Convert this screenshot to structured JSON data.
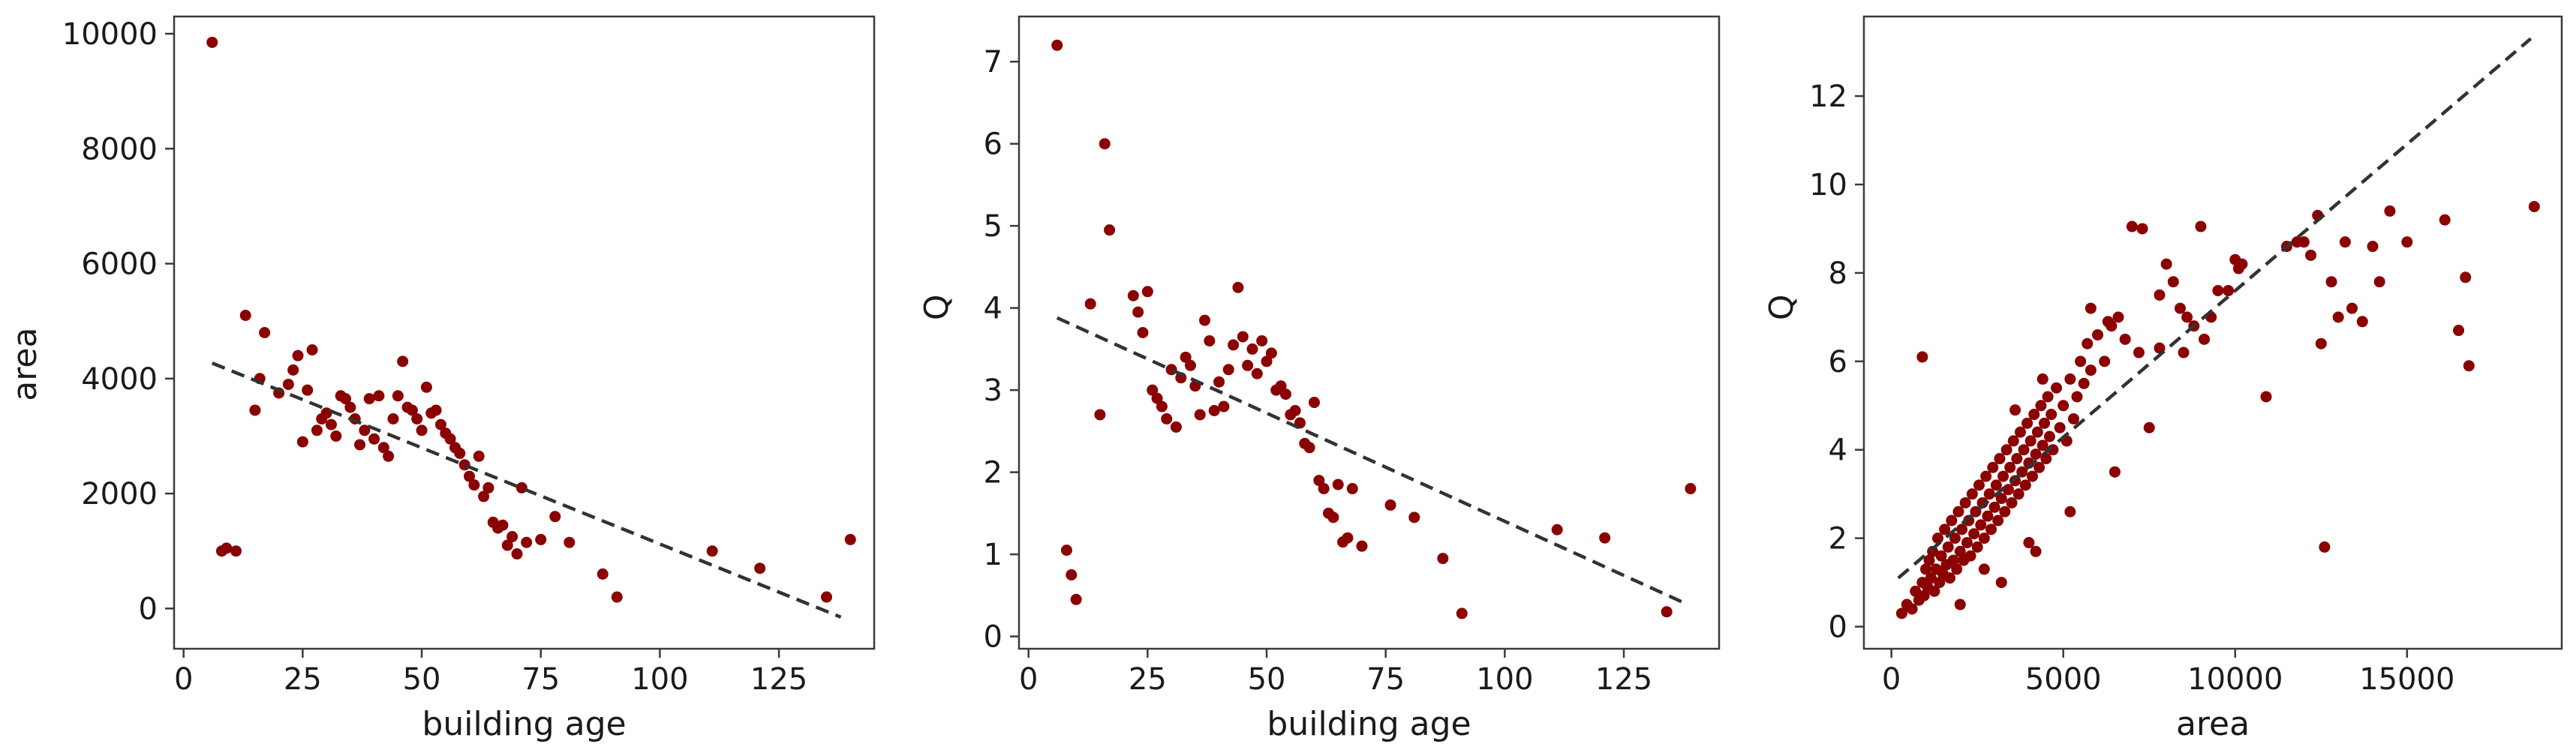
{
  "colors": {
    "marker": "#8b0000",
    "trend": "#333333",
    "frame": "#3a3a3a"
  },
  "chart_data": [
    {
      "type": "scatter",
      "xlabel": "building age",
      "ylabel": "area",
      "xlim": [
        -2,
        145
      ],
      "ylim": [
        -700,
        10300
      ],
      "xticks": [
        0,
        25,
        50,
        75,
        100,
        125
      ],
      "yticks": [
        0,
        2000,
        4000,
        6000,
        8000,
        10000
      ],
      "xtick_labels": [
        "0",
        "25",
        "50",
        "75",
        "100",
        "125"
      ],
      "ytick_labels": [
        "0",
        "2000",
        "4000",
        "6000",
        "8000",
        "10000"
      ],
      "trend_line": {
        "x": [
          6,
          138
        ],
        "y": [
          4270,
          -150
        ]
      },
      "points": [
        [
          6,
          9850
        ],
        [
          8,
          1000
        ],
        [
          9,
          1050
        ],
        [
          11,
          1000
        ],
        [
          13,
          5100
        ],
        [
          15,
          3450
        ],
        [
          16,
          4000
        ],
        [
          17,
          4800
        ],
        [
          20,
          3750
        ],
        [
          22,
          3900
        ],
        [
          23,
          4150
        ],
        [
          24,
          4400
        ],
        [
          25,
          2900
        ],
        [
          26,
          3800
        ],
        [
          27,
          4500
        ],
        [
          28,
          3100
        ],
        [
          29,
          3300
        ],
        [
          30,
          3400
        ],
        [
          31,
          3200
        ],
        [
          32,
          3000
        ],
        [
          33,
          3700
        ],
        [
          34,
          3650
        ],
        [
          35,
          3500
        ],
        [
          36,
          3300
        ],
        [
          37,
          2850
        ],
        [
          38,
          3100
        ],
        [
          39,
          3650
        ],
        [
          40,
          2950
        ],
        [
          41,
          3700
        ],
        [
          42,
          2800
        ],
        [
          43,
          2650
        ],
        [
          44,
          3300
        ],
        [
          45,
          3700
        ],
        [
          46,
          4300
        ],
        [
          47,
          3500
        ],
        [
          48,
          3450
        ],
        [
          49,
          3300
        ],
        [
          50,
          3100
        ],
        [
          51,
          3850
        ],
        [
          52,
          3400
        ],
        [
          53,
          3450
        ],
        [
          54,
          3200
        ],
        [
          55,
          3050
        ],
        [
          56,
          2950
        ],
        [
          57,
          2800
        ],
        [
          58,
          2700
        ],
        [
          59,
          2500
        ],
        [
          60,
          2300
        ],
        [
          61,
          2150
        ],
        [
          62,
          2650
        ],
        [
          63,
          1950
        ],
        [
          64,
          2100
        ],
        [
          65,
          1500
        ],
        [
          66,
          1400
        ],
        [
          67,
          1450
        ],
        [
          68,
          1100
        ],
        [
          69,
          1250
        ],
        [
          70,
          950
        ],
        [
          71,
          2100
        ],
        [
          72,
          1150
        ],
        [
          75,
          1200
        ],
        [
          78,
          1600
        ],
        [
          81,
          1150
        ],
        [
          88,
          600
        ],
        [
          91,
          200
        ],
        [
          111,
          1000
        ],
        [
          121,
          700
        ],
        [
          135,
          200
        ],
        [
          140,
          1200
        ]
      ]
    },
    {
      "type": "scatter",
      "xlabel": "building age",
      "ylabel": "Q",
      "xlim": [
        -2,
        145
      ],
      "ylim": [
        -0.15,
        7.55
      ],
      "xticks": [
        0,
        25,
        50,
        75,
        100,
        125
      ],
      "yticks": [
        0,
        1,
        2,
        3,
        4,
        5,
        6,
        7
      ],
      "xtick_labels": [
        "0",
        "25",
        "50",
        "75",
        "100",
        "125"
      ],
      "ytick_labels": [
        "0",
        "1",
        "2",
        "3",
        "4",
        "5",
        "6",
        "7"
      ],
      "trend_line": {
        "x": [
          6,
          138
        ],
        "y": [
          3.88,
          0.4
        ]
      },
      "points": [
        [
          6,
          7.2
        ],
        [
          8,
          1.05
        ],
        [
          9,
          0.75
        ],
        [
          10,
          0.45
        ],
        [
          13,
          4.05
        ],
        [
          15,
          2.7
        ],
        [
          16,
          6.0
        ],
        [
          17,
          4.95
        ],
        [
          22,
          4.15
        ],
        [
          23,
          3.95
        ],
        [
          24,
          3.7
        ],
        [
          25,
          4.2
        ],
        [
          26,
          3.0
        ],
        [
          27,
          2.9
        ],
        [
          28,
          2.8
        ],
        [
          29,
          2.65
        ],
        [
          30,
          3.25
        ],
        [
          31,
          2.55
        ],
        [
          32,
          3.15
        ],
        [
          33,
          3.4
        ],
        [
          34,
          3.3
        ],
        [
          35,
          3.05
        ],
        [
          36,
          2.7
        ],
        [
          37,
          3.85
        ],
        [
          38,
          3.6
        ],
        [
          39,
          2.75
        ],
        [
          40,
          3.1
        ],
        [
          41,
          2.8
        ],
        [
          42,
          3.25
        ],
        [
          43,
          3.55
        ],
        [
          44,
          4.25
        ],
        [
          45,
          3.65
        ],
        [
          46,
          3.3
        ],
        [
          47,
          3.5
        ],
        [
          48,
          3.2
        ],
        [
          49,
          3.6
        ],
        [
          50,
          3.35
        ],
        [
          51,
          3.45
        ],
        [
          52,
          3.0
        ],
        [
          53,
          3.05
        ],
        [
          54,
          2.95
        ],
        [
          55,
          2.7
        ],
        [
          56,
          2.75
        ],
        [
          57,
          2.6
        ],
        [
          58,
          2.35
        ],
        [
          59,
          2.3
        ],
        [
          60,
          2.85
        ],
        [
          61,
          1.9
        ],
        [
          62,
          1.8
        ],
        [
          63,
          1.5
        ],
        [
          64,
          1.45
        ],
        [
          65,
          1.85
        ],
        [
          66,
          1.15
        ],
        [
          67,
          1.2
        ],
        [
          68,
          1.8
        ],
        [
          70,
          1.1
        ],
        [
          76,
          1.6
        ],
        [
          81,
          1.45
        ],
        [
          87,
          0.95
        ],
        [
          91,
          0.28
        ],
        [
          111,
          1.3
        ],
        [
          121,
          1.2
        ],
        [
          134,
          0.3
        ],
        [
          139,
          1.8
        ]
      ]
    },
    {
      "type": "scatter",
      "xlabel": "area",
      "ylabel": "Q",
      "xlim": [
        -800,
        19500
      ],
      "ylim": [
        -0.5,
        13.8
      ],
      "xticks": [
        0,
        5000,
        10000,
        15000
      ],
      "yticks": [
        0,
        2,
        4,
        6,
        8,
        10,
        12
      ],
      "xtick_labels": [
        "0",
        "5000",
        "10000",
        "15000"
      ],
      "ytick_labels": [
        "0",
        "2",
        "4",
        "6",
        "8",
        "10",
        "12"
      ],
      "trend_line": {
        "x": [
          200,
          18600
        ],
        "y": [
          1.1,
          13.3
        ]
      },
      "points": [
        [
          300,
          0.3
        ],
        [
          450,
          0.5
        ],
        [
          600,
          0.4
        ],
        [
          700,
          0.8
        ],
        [
          800,
          0.6
        ],
        [
          900,
          1.0
        ],
        [
          950,
          0.7
        ],
        [
          1000,
          1.3
        ],
        [
          1050,
          0.9
        ],
        [
          1100,
          1.5
        ],
        [
          1150,
          1.1
        ],
        [
          1200,
          1.7
        ],
        [
          1250,
          0.8
        ],
        [
          1300,
          1.3
        ],
        [
          1350,
          2.0
        ],
        [
          1400,
          1.0
        ],
        [
          1450,
          1.6
        ],
        [
          1500,
          1.2
        ],
        [
          1550,
          2.2
        ],
        [
          1600,
          1.4
        ],
        [
          1650,
          1.8
        ],
        [
          1700,
          1.1
        ],
        [
          1750,
          2.4
        ],
        [
          1800,
          1.5
        ],
        [
          1850,
          2.0
        ],
        [
          1900,
          1.3
        ],
        [
          1950,
          2.6
        ],
        [
          2000,
          1.7
        ],
        [
          2050,
          2.2
        ],
        [
          2100,
          1.5
        ],
        [
          2150,
          2.8
        ],
        [
          2200,
          1.9
        ],
        [
          2250,
          2.4
        ],
        [
          2300,
          1.6
        ],
        [
          2350,
          3.0
        ],
        [
          2400,
          2.1
        ],
        [
          2450,
          2.6
        ],
        [
          2500,
          1.8
        ],
        [
          2550,
          3.2
        ],
        [
          2600,
          2.3
        ],
        [
          2650,
          2.8
        ],
        [
          2700,
          2.0
        ],
        [
          2750,
          3.4
        ],
        [
          2800,
          2.5
        ],
        [
          2850,
          3.0
        ],
        [
          2900,
          2.2
        ],
        [
          2950,
          3.6
        ],
        [
          3000,
          2.7
        ],
        [
          3050,
          3.2
        ],
        [
          3100,
          2.4
        ],
        [
          3150,
          3.8
        ],
        [
          3200,
          2.9
        ],
        [
          3250,
          3.4
        ],
        [
          3300,
          2.6
        ],
        [
          3350,
          4.0
        ],
        [
          3400,
          3.1
        ],
        [
          3450,
          3.6
        ],
        [
          3500,
          2.8
        ],
        [
          3550,
          4.2
        ],
        [
          3600,
          3.3
        ],
        [
          3650,
          3.8
        ],
        [
          3700,
          3.0
        ],
        [
          3750,
          4.4
        ],
        [
          3800,
          3.5
        ],
        [
          3850,
          4.0
        ],
        [
          3900,
          3.2
        ],
        [
          3950,
          4.6
        ],
        [
          4000,
          3.7
        ],
        [
          4050,
          4.2
        ],
        [
          4100,
          3.4
        ],
        [
          4150,
          4.8
        ],
        [
          4200,
          3.9
        ],
        [
          4250,
          4.4
        ],
        [
          4300,
          3.6
        ],
        [
          4350,
          5.0
        ],
        [
          4400,
          4.1
        ],
        [
          4450,
          4.6
        ],
        [
          4500,
          3.8
        ],
        [
          4550,
          5.2
        ],
        [
          4600,
          4.3
        ],
        [
          4650,
          4.8
        ],
        [
          4700,
          4.0
        ],
        [
          4800,
          5.4
        ],
        [
          4900,
          4.5
        ],
        [
          5000,
          5.0
        ],
        [
          5100,
          4.2
        ],
        [
          5200,
          5.6
        ],
        [
          5300,
          4.7
        ],
        [
          5400,
          5.2
        ],
        [
          5500,
          6.0
        ],
        [
          5600,
          5.5
        ],
        [
          5700,
          6.4
        ],
        [
          5800,
          5.8
        ],
        [
          6000,
          6.6
        ],
        [
          6200,
          6.0
        ],
        [
          6400,
          6.8
        ],
        [
          6600,
          7.0
        ],
        [
          6800,
          6.5
        ],
        [
          7000,
          9.05
        ],
        [
          7200,
          6.2
        ],
        [
          7300,
          9.0
        ],
        [
          7500,
          4.5
        ],
        [
          7800,
          7.5
        ],
        [
          8000,
          8.2
        ],
        [
          8200,
          7.8
        ],
        [
          8400,
          7.2
        ],
        [
          8600,
          7.0
        ],
        [
          8800,
          6.8
        ],
        [
          9000,
          9.05
        ],
        [
          9100,
          6.5
        ],
        [
          9300,
          7.0
        ],
        [
          9500,
          7.6
        ],
        [
          9800,
          7.6
        ],
        [
          10000,
          8.3
        ],
        [
          10100,
          8.1
        ],
        [
          10200,
          8.2
        ],
        [
          10900,
          5.2
        ],
        [
          11500,
          8.6
        ],
        [
          11800,
          8.7
        ],
        [
          12000,
          8.7
        ],
        [
          12200,
          8.4
        ],
        [
          12400,
          9.3
        ],
        [
          12500,
          6.4
        ],
        [
          12600,
          1.8
        ],
        [
          12800,
          7.8
        ],
        [
          13000,
          7.0
        ],
        [
          13200,
          8.7
        ],
        [
          13400,
          7.2
        ],
        [
          13700,
          6.9
        ],
        [
          14000,
          8.6
        ],
        [
          14200,
          7.8
        ],
        [
          14500,
          9.4
        ],
        [
          15000,
          8.7
        ],
        [
          16100,
          9.2
        ],
        [
          16500,
          6.7
        ],
        [
          16700,
          7.9
        ],
        [
          16800,
          5.9
        ],
        [
          18700,
          9.5
        ],
        [
          900,
          6.1
        ],
        [
          2000,
          0.5
        ],
        [
          4200,
          1.7
        ],
        [
          3200,
          1.0
        ],
        [
          4000,
          1.9
        ],
        [
          2700,
          1.3
        ],
        [
          5200,
          2.6
        ],
        [
          6500,
          3.5
        ],
        [
          3600,
          4.9
        ],
        [
          4400,
          5.6
        ],
        [
          5800,
          7.2
        ],
        [
          6300,
          6.9
        ],
        [
          7800,
          6.3
        ],
        [
          8500,
          6.2
        ]
      ]
    }
  ]
}
